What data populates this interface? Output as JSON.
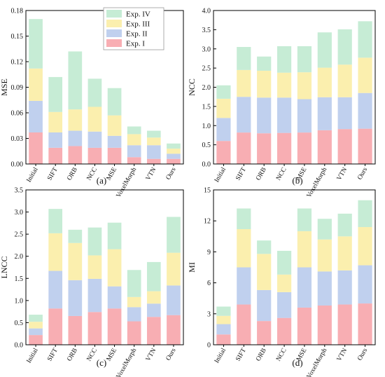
{
  "legend": {
    "entries": [
      "Exp. IV",
      "Exp. III",
      "Exp. II",
      "Exp. I"
    ],
    "colors": [
      "#c6ecd5",
      "#fbefae",
      "#c0d0ee",
      "#f8aeb3"
    ],
    "placement": "top-right of panel (a)"
  },
  "chart_data": [
    {
      "type": "bar",
      "stacked": true,
      "panel_label": "(a)",
      "ylabel": "MSE",
      "categories": [
        "Initial",
        "SIFT",
        "ORB",
        "NCC",
        "MSE",
        "VoxelMorph",
        "VTN",
        "Ours"
      ],
      "ylim": [
        0,
        0.18
      ],
      "yticks": [
        "0.00",
        "0.03",
        "0.06",
        "0.09",
        "0.12",
        "0.15",
        "0.18"
      ],
      "series": [
        {
          "name": "Exp. I",
          "values": [
            0.037,
            0.019,
            0.021,
            0.019,
            0.019,
            0.008,
            0.006,
            0.006
          ]
        },
        {
          "name": "Exp. II",
          "values": [
            0.037,
            0.018,
            0.018,
            0.019,
            0.014,
            0.014,
            0.016,
            0.006
          ]
        },
        {
          "name": "Exp. III",
          "values": [
            0.038,
            0.024,
            0.025,
            0.029,
            0.024,
            0.013,
            0.009,
            0.006
          ]
        },
        {
          "name": "Exp. IV",
          "values": [
            0.058,
            0.041,
            0.068,
            0.033,
            0.032,
            0.009,
            0.008,
            0.006
          ]
        }
      ]
    },
    {
      "type": "bar",
      "stacked": true,
      "panel_label": "(b)",
      "ylabel": "NCC",
      "categories": [
        "Initial",
        "SIFT",
        "ORB",
        "NCC",
        "MSE",
        "VoxelMorph",
        "VTN",
        "Ours"
      ],
      "ylim": [
        0,
        4.0
      ],
      "yticks": [
        "0.0",
        "0.5",
        "1.0",
        "1.5",
        "2.0",
        "2.5",
        "3.0",
        "3.5",
        "4.0"
      ],
      "series": [
        {
          "name": "Exp. I",
          "values": [
            0.6,
            0.82,
            0.8,
            0.81,
            0.82,
            0.88,
            0.91,
            0.92
          ]
        },
        {
          "name": "Exp. II",
          "values": [
            0.6,
            0.93,
            0.93,
            0.92,
            0.87,
            0.86,
            0.83,
            0.93
          ]
        },
        {
          "name": "Exp. III",
          "values": [
            0.5,
            0.7,
            0.7,
            0.65,
            0.7,
            0.77,
            0.85,
            0.92
          ]
        },
        {
          "name": "Exp. IV",
          "values": [
            0.35,
            0.6,
            0.37,
            0.69,
            0.68,
            0.92,
            0.92,
            0.95
          ]
        }
      ]
    },
    {
      "type": "bar",
      "stacked": true,
      "panel_label": "(c)",
      "ylabel": "LNCC",
      "categories": [
        "Initial",
        "SIFT",
        "ORB",
        "NCC",
        "MSE",
        "VoxelMorph",
        "VTN",
        "Ours"
      ],
      "ylim": [
        0,
        3.5
      ],
      "yticks": [
        "0.0",
        "0.5",
        "1.0",
        "1.5",
        "2.0",
        "2.5",
        "3.0",
        "3.5"
      ],
      "series": [
        {
          "name": "Exp. I",
          "values": [
            0.22,
            0.82,
            0.65,
            0.74,
            0.82,
            0.53,
            0.63,
            0.67
          ]
        },
        {
          "name": "Exp. II",
          "values": [
            0.15,
            0.85,
            0.81,
            0.75,
            0.5,
            0.32,
            0.3,
            0.67
          ]
        },
        {
          "name": "Exp. III",
          "values": [
            0.15,
            0.85,
            0.84,
            0.53,
            0.84,
            0.23,
            0.28,
            0.74
          ]
        },
        {
          "name": "Exp. IV",
          "values": [
            0.16,
            0.55,
            0.3,
            0.63,
            0.6,
            0.61,
            0.66,
            0.81
          ]
        }
      ]
    },
    {
      "type": "bar",
      "stacked": true,
      "panel_label": "(d)",
      "ylabel": "MI",
      "categories": [
        "Initial",
        "SIFT",
        "ORB",
        "NCC",
        "MSE",
        "VoxelMorph",
        "VTN",
        "Ours"
      ],
      "ylim": [
        0,
        15
      ],
      "yticks": [
        "0",
        "3",
        "6",
        "9",
        "12",
        "15"
      ],
      "series": [
        {
          "name": "Exp. I",
          "values": [
            1.0,
            3.9,
            2.3,
            2.6,
            3.6,
            3.8,
            3.9,
            4.0
          ]
        },
        {
          "name": "Exp. II",
          "values": [
            1.0,
            3.6,
            3.0,
            2.5,
            3.9,
            3.3,
            3.3,
            3.7
          ]
        },
        {
          "name": "Exp. III",
          "values": [
            0.8,
            3.7,
            3.5,
            1.7,
            3.5,
            3.1,
            3.3,
            3.7
          ]
        },
        {
          "name": "Exp. IV",
          "values": [
            0.9,
            2.0,
            1.3,
            2.3,
            2.2,
            2.0,
            2.2,
            2.6
          ]
        }
      ]
    }
  ]
}
